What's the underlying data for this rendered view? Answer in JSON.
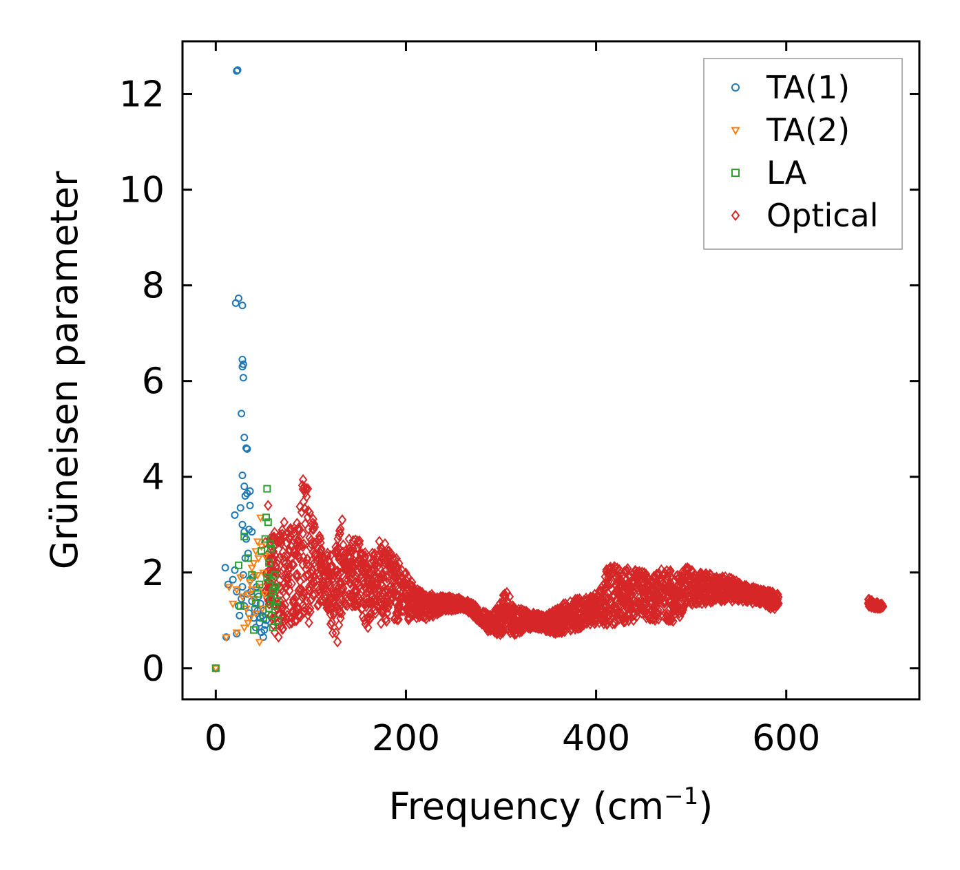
{
  "chart_data": {
    "type": "scatter",
    "title": "",
    "xlabel": "Frequency (cm",
    "xlabel_superscript": "−1",
    "xlabel_suffix": ")",
    "ylabel": "Grüneisen parameter",
    "xlim": [
      -35,
      740
    ],
    "ylim": [
      -0.65,
      13.1
    ],
    "xticks": [
      0,
      200,
      400,
      600
    ],
    "xtick_labels": [
      "0",
      "200",
      "400",
      "600"
    ],
    "yticks": [
      0,
      2,
      4,
      6,
      8,
      10,
      12
    ],
    "ytick_labels": [
      "0",
      "2",
      "4",
      "6",
      "8",
      "10",
      "12"
    ],
    "grid": false,
    "legend_position": "top-right",
    "series": [
      {
        "name": "TA(1)",
        "marker": "circle",
        "color": "#1f77b4",
        "points": [
          [
            0,
            0.0
          ],
          [
            11,
            0.65
          ],
          [
            22,
            0.72
          ],
          [
            10,
            2.1
          ],
          [
            13,
            1.75
          ],
          [
            18,
            1.85
          ],
          [
            20,
            2.05
          ],
          [
            22,
            1.6
          ],
          [
            24,
            1.3
          ],
          [
            25,
            1.1
          ],
          [
            27,
            1.45
          ],
          [
            28,
            1.7
          ],
          [
            29,
            1.95
          ],
          [
            30,
            1.3
          ],
          [
            31,
            2.3
          ],
          [
            33,
            1.55
          ],
          [
            35,
            1.15
          ],
          [
            36,
            1.85
          ],
          [
            38,
            1.4
          ],
          [
            40,
            1.05
          ],
          [
            42,
            0.85
          ],
          [
            44,
            1.2
          ],
          [
            46,
            0.95
          ],
          [
            48,
            0.75
          ],
          [
            50,
            0.65
          ],
          [
            52,
            0.9
          ],
          [
            47,
            1.35
          ],
          [
            49,
            1.1
          ],
          [
            51,
            0.8
          ],
          [
            53,
            1.0
          ],
          [
            45,
            1.5
          ],
          [
            43,
            1.7
          ],
          [
            39,
            1.9
          ],
          [
            41,
            1.25
          ],
          [
            37,
            1.6
          ],
          [
            34,
            2.4
          ],
          [
            32,
            2.7
          ],
          [
            30,
            2.85
          ],
          [
            28,
            3.0
          ],
          [
            35,
            2.9
          ],
          [
            38,
            2.85
          ],
          [
            20,
            3.2
          ],
          [
            26,
            3.35
          ],
          [
            36,
            3.4
          ],
          [
            31,
            3.6
          ],
          [
            33,
            3.65
          ],
          [
            30,
            3.8
          ],
          [
            36,
            3.7
          ],
          [
            28,
            4.03
          ],
          [
            33,
            4.58
          ],
          [
            32,
            4.6
          ],
          [
            30,
            4.82
          ],
          [
            27,
            5.32
          ],
          [
            29,
            6.07
          ],
          [
            28,
            6.3
          ],
          [
            28,
            6.45
          ],
          [
            29,
            6.35
          ],
          [
            21,
            7.63
          ],
          [
            24,
            7.73
          ],
          [
            28,
            7.58
          ],
          [
            23,
            12.5
          ],
          [
            22,
            12.48
          ],
          [
            47,
            1.05
          ],
          [
            50,
            1.2
          ]
        ]
      },
      {
        "name": "TA(2)",
        "marker": "triangle-down",
        "color": "#ff7f0e",
        "points": [
          [
            0,
            0.0
          ],
          [
            11,
            0.65
          ],
          [
            22,
            0.75
          ],
          [
            14,
            1.7
          ],
          [
            18,
            1.35
          ],
          [
            22,
            1.65
          ],
          [
            26,
            1.9
          ],
          [
            28,
            1.5
          ],
          [
            30,
            0.85
          ],
          [
            32,
            1.25
          ],
          [
            34,
            1.55
          ],
          [
            36,
            1.8
          ],
          [
            38,
            2.1
          ],
          [
            40,
            1.45
          ],
          [
            42,
            1.15
          ],
          [
            44,
            1.95
          ],
          [
            45,
            2.3
          ],
          [
            46,
            0.55
          ],
          [
            47,
            1.7
          ],
          [
            48,
            2.55
          ],
          [
            49,
            1.25
          ],
          [
            50,
            2.0
          ],
          [
            51,
            1.55
          ],
          [
            52,
            2.35
          ],
          [
            47,
            3.15
          ],
          [
            44,
            2.65
          ],
          [
            42,
            2.45
          ],
          [
            40,
            2.2
          ],
          [
            38,
            1.65
          ],
          [
            36,
            1.05
          ],
          [
            34,
            0.95
          ],
          [
            41,
            1.95
          ]
        ]
      },
      {
        "name": "LA",
        "marker": "square",
        "color": "#2ca02c",
        "points": [
          [
            0,
            0.0
          ],
          [
            24,
            2.15
          ],
          [
            26,
            1.3
          ],
          [
            30,
            2.75
          ],
          [
            34,
            2.3
          ],
          [
            38,
            1.95
          ],
          [
            40,
            0.8
          ],
          [
            42,
            1.35
          ],
          [
            44,
            1.55
          ],
          [
            46,
            1.75
          ],
          [
            48,
            2.45
          ],
          [
            50,
            1.05
          ],
          [
            52,
            2.7
          ],
          [
            53,
            3.15
          ],
          [
            54,
            3.75
          ],
          [
            55,
            3.05
          ],
          [
            56,
            2.2
          ],
          [
            57,
            1.85
          ],
          [
            58,
            1.45
          ],
          [
            59,
            1.1
          ],
          [
            60,
            0.85
          ],
          [
            61,
            1.65
          ],
          [
            62,
            1.3
          ],
          [
            63,
            1.7
          ],
          [
            64,
            1.4
          ],
          [
            65,
            1.0
          ],
          [
            58,
            2.5
          ],
          [
            56,
            1.25
          ],
          [
            54,
            1.9
          ],
          [
            60,
            1.6
          ],
          [
            62,
            1.95
          ],
          [
            57,
            2.6
          ]
        ]
      },
      {
        "name": "Optical",
        "marker": "diamond",
        "color": "#d62728",
        "points": []
      }
    ],
    "optical_band": [
      [
        52,
        1.2,
        2.75
      ],
      [
        60,
        0.9,
        2.9
      ],
      [
        70,
        0.8,
        2.9
      ],
      [
        80,
        0.9,
        2.95
      ],
      [
        88,
        1.0,
        3.4
      ],
      [
        93,
        1.0,
        4.25
      ],
      [
        98,
        1.1,
        3.7
      ],
      [
        105,
        1.2,
        3.3
      ],
      [
        112,
        1.4,
        2.5
      ],
      [
        118,
        1.2,
        2.4
      ],
      [
        124,
        0.6,
        2.35
      ],
      [
        130,
        0.9,
        3.0
      ],
      [
        136,
        1.3,
        2.85
      ],
      [
        142,
        1.2,
        2.7
      ],
      [
        148,
        1.3,
        2.75
      ],
      [
        155,
        1.0,
        2.6
      ],
      [
        160,
        0.8,
        2.2
      ],
      [
        165,
        1.2,
        2.45
      ],
      [
        170,
        1.1,
        2.6
      ],
      [
        176,
        0.8,
        2.5
      ],
      [
        182,
        1.1,
        2.5
      ],
      [
        190,
        1.0,
        2.3
      ],
      [
        200,
        1.0,
        2.0
      ],
      [
        210,
        1.0,
        1.7
      ],
      [
        220,
        1.0,
        1.55
      ],
      [
        230,
        1.1,
        1.55
      ],
      [
        240,
        1.2,
        1.5
      ],
      [
        250,
        1.2,
        1.5
      ],
      [
        260,
        1.25,
        1.45
      ],
      [
        270,
        1.1,
        1.35
      ],
      [
        280,
        0.85,
        1.2
      ],
      [
        290,
        0.7,
        1.1
      ],
      [
        300,
        0.7,
        1.45
      ],
      [
        306,
        0.75,
        1.65
      ],
      [
        315,
        0.7,
        1.3
      ],
      [
        325,
        0.8,
        1.2
      ],
      [
        335,
        0.85,
        1.15
      ],
      [
        345,
        0.8,
        1.1
      ],
      [
        355,
        0.7,
        1.2
      ],
      [
        365,
        0.75,
        1.35
      ],
      [
        375,
        0.8,
        1.45
      ],
      [
        385,
        0.85,
        1.45
      ],
      [
        395,
        0.9,
        1.5
      ],
      [
        405,
        0.95,
        1.65
      ],
      [
        412,
        0.85,
        2.15
      ],
      [
        420,
        0.9,
        2.15
      ],
      [
        430,
        0.95,
        2.1
      ],
      [
        440,
        1.0,
        2.05
      ],
      [
        450,
        1.05,
        2.0
      ],
      [
        460,
        1.0,
        1.95
      ],
      [
        470,
        0.95,
        2.1
      ],
      [
        478,
        0.95,
        2.05
      ],
      [
        486,
        0.95,
        1.95
      ],
      [
        495,
        1.3,
        2.1
      ],
      [
        505,
        1.35,
        2.0
      ],
      [
        515,
        1.35,
        2.0
      ],
      [
        525,
        1.4,
        1.95
      ],
      [
        535,
        1.4,
        1.95
      ],
      [
        545,
        1.4,
        1.85
      ],
      [
        555,
        1.4,
        1.75
      ],
      [
        565,
        1.35,
        1.7
      ],
      [
        575,
        1.35,
        1.65
      ],
      [
        585,
        1.2,
        1.6
      ],
      [
        592,
        1.25,
        1.55
      ],
      [
        686,
        1.3,
        1.45
      ],
      [
        692,
        1.25,
        1.4
      ],
      [
        698,
        1.25,
        1.35
      ],
      [
        702,
        1.28,
        1.34
      ]
    ],
    "optical_outliers": [
      [
        55,
        3.4
      ],
      [
        62,
        0.75
      ],
      [
        66,
        0.65
      ],
      [
        72,
        3.05
      ],
      [
        80,
        0.95
      ],
      [
        98,
        0.95
      ],
      [
        128,
        0.55
      ],
      [
        133,
        3.1
      ],
      [
        160,
        0.85
      ],
      [
        172,
        2.65
      ],
      [
        178,
        2.6
      ],
      [
        496,
        2.1
      ]
    ]
  },
  "legend": {
    "items": [
      {
        "label": "TA(1)",
        "marker": "circle",
        "color": "#1f77b4"
      },
      {
        "label": "TA(2)",
        "marker": "triangle-down",
        "color": "#ff7f0e"
      },
      {
        "label": "LA",
        "marker": "square",
        "color": "#2ca02c"
      },
      {
        "label": "Optical",
        "marker": "diamond",
        "color": "#d62728"
      }
    ]
  }
}
